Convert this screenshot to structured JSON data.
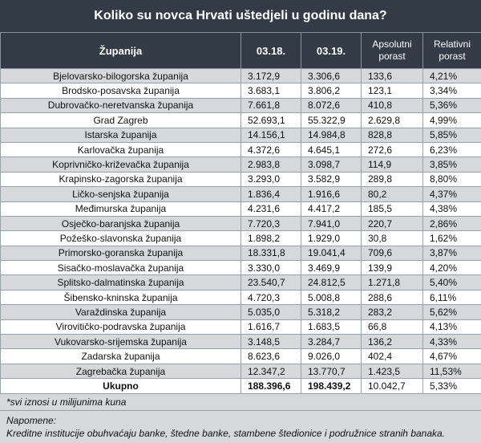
{
  "title": "Koliko su novca Hrvati uštedjeli u godinu dana?",
  "headers": {
    "county": "Županija",
    "y2018": "03.18.",
    "y2019": "03.19.",
    "abs": [
      "Apsolutni",
      "porast"
    ],
    "rel": [
      "Relativni",
      "porast"
    ]
  },
  "rows": [
    [
      "Bjelovarsko-bilogorska županija",
      "3.172,9",
      "3.306,6",
      "133,6",
      "4,21%"
    ],
    [
      "Brodsko-posavska županija",
      "3.683,1",
      "3.806,2",
      "123,1",
      "3,34%"
    ],
    [
      "Dubrovačko-neretvanska županija",
      "7.661,8",
      "8.072,6",
      "410,8",
      "5,36%"
    ],
    [
      "Grad Zagreb",
      "52.693,1",
      "55.322,9",
      "2.629,8",
      "4,99%"
    ],
    [
      "Istarska županija",
      "14.156,1",
      "14.984,8",
      "828,8",
      "5,85%"
    ],
    [
      "Karlovačka županija",
      "4.372,6",
      "4.645,1",
      "272,6",
      "6,23%"
    ],
    [
      "Koprivničko-križevačka županija",
      "2.983,8",
      "3.098,7",
      "114,9",
      "3,85%"
    ],
    [
      "Krapinsko-zagorska županija",
      "3.293,0",
      "3.582,9",
      "289,8",
      "8,80%"
    ],
    [
      "Ličko-senjska županija",
      "1.836,4",
      "1.916,6",
      "80,2",
      "4,37%"
    ],
    [
      "Međimurska županija",
      "4.231,6",
      "4.417,2",
      "185,5",
      "4,38%"
    ],
    [
      "Osječko-baranjska županija",
      "7.720,3",
      "7.941,0",
      "220,7",
      "2,86%"
    ],
    [
      "Požeško-slavonska županija",
      "1.898,2",
      "1.929,0",
      "30,8",
      "1,62%"
    ],
    [
      "Primorsko-goranska županija",
      "18.331,8",
      "19.041,4",
      "709,6",
      "3,87%"
    ],
    [
      "Sisačko-moslavačka županija",
      "3.330,0",
      "3.469,9",
      "139,9",
      "4,20%"
    ],
    [
      "Splitsko-dalmatinska županija",
      "23.540,7",
      "24.812,5",
      "1.271,8",
      "5,40%"
    ],
    [
      "Šibensko-kninska županija",
      "4.720,3",
      "5.008,8",
      "288,6",
      "6,11%"
    ],
    [
      "Varaždinska županija",
      "5.035,0",
      "5.318,2",
      "283,2",
      "5,62%"
    ],
    [
      "Virovitičko-podravska županija",
      "1.616,7",
      "1.683,5",
      "66,8",
      "4,13%"
    ],
    [
      "Vukovarsko-srijemska županija",
      "3.148,5",
      "3.284,7",
      "136,2",
      "4,33%"
    ],
    [
      "Zadarska županija",
      "8.623,6",
      "9.026,0",
      "402,4",
      "4,67%"
    ],
    [
      "Zagrebačka županija",
      "12.347,2",
      "13.770,7",
      "1.423,5",
      "11,53%"
    ]
  ],
  "total": [
    "Ukupno",
    "188.396,6",
    "198.439,2",
    "10.042,7",
    "5,33%"
  ],
  "unit_note": "*svi iznosi u milijunima kuna",
  "notes_title": "Napomene:",
  "notes_text": "Kreditne institucije obuhvaćaju banke, štedne banke, stambene štedionice i podružnice stranih banaka."
}
